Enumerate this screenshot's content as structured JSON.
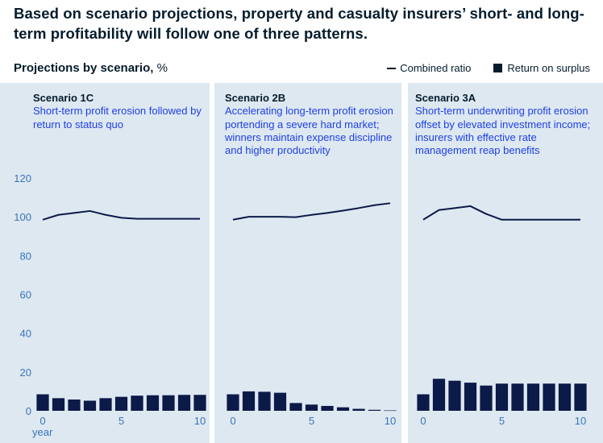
{
  "header": {
    "title": "Based on scenario projections, property and casualty insurers’ short- and long-term profitability will follow one of three patterns.",
    "subtitle_bold": "Projections by scenario,",
    "subtitle_unit": " %"
  },
  "legend": {
    "combined_ratio": "Combined ratio",
    "return_on_surplus": "Return on surplus"
  },
  "colors": {
    "panel_bg": "#dde8f1",
    "series": "#0c1a49",
    "axis_text": "#3b74b8",
    "title_text": "#051c2c"
  },
  "chart_data": [
    {
      "type": "bar+line",
      "title": "Scenario 1C",
      "description": "Short-term profit erosion followed by return to status quo",
      "x": [
        0,
        1,
        2,
        3,
        4,
        5,
        6,
        7,
        8,
        9,
        10
      ],
      "xticks": [
        0,
        5,
        10
      ],
      "xlabel": "year",
      "ylim": [
        0,
        120
      ],
      "yticks": [
        0,
        20,
        40,
        60,
        80,
        100,
        120
      ],
      "series": [
        {
          "name": "Combined ratio",
          "kind": "line",
          "values": [
            98.5,
            101,
            102,
            103,
            101,
            99.5,
            99,
            99,
            99,
            99,
            99
          ]
        },
        {
          "name": "Return on surplus",
          "kind": "bar",
          "values": [
            8.5,
            6.5,
            5.8,
            5.2,
            6.5,
            7.2,
            7.8,
            8,
            8,
            8.2,
            8.2
          ]
        }
      ]
    },
    {
      "type": "bar+line",
      "title": "Scenario 2B",
      "description": "Accelerating long-term profit erosion portending a severe hard market; winners maintain expense discipline and higher productivity",
      "x": [
        0,
        1,
        2,
        3,
        4,
        5,
        6,
        7,
        8,
        9,
        10
      ],
      "xticks": [
        0,
        5,
        10
      ],
      "ylim": [
        0,
        120
      ],
      "series": [
        {
          "name": "Combined ratio",
          "kind": "line",
          "values": [
            98.5,
            100,
            100,
            100,
            99.8,
            101,
            102,
            103.2,
            104.5,
            106,
            107
          ]
        },
        {
          "name": "Return on surplus",
          "kind": "bar",
          "values": [
            8.5,
            10,
            9.8,
            9.3,
            4,
            3.2,
            2.5,
            1.8,
            1,
            0.5,
            0.2
          ]
        }
      ]
    },
    {
      "type": "bar+line",
      "title": "Scenario 3A",
      "description": "Short-term underwriting profit erosion offset by elevated investment income; insurers with effective rate management reap benefits",
      "x": [
        0,
        1,
        2,
        3,
        4,
        5,
        6,
        7,
        8,
        9,
        10
      ],
      "xticks": [
        0,
        5,
        10
      ],
      "ylim": [
        0,
        120
      ],
      "series": [
        {
          "name": "Combined ratio",
          "kind": "line",
          "values": [
            98.5,
            103.5,
            104.5,
            105.5,
            101.5,
            98.5,
            98.5,
            98.5,
            98.5,
            98.5,
            98.5
          ]
        },
        {
          "name": "Return on surplus",
          "kind": "bar",
          "values": [
            8.5,
            16.5,
            15.5,
            14.5,
            13,
            14,
            14,
            14,
            14,
            14,
            14
          ]
        }
      ]
    }
  ]
}
